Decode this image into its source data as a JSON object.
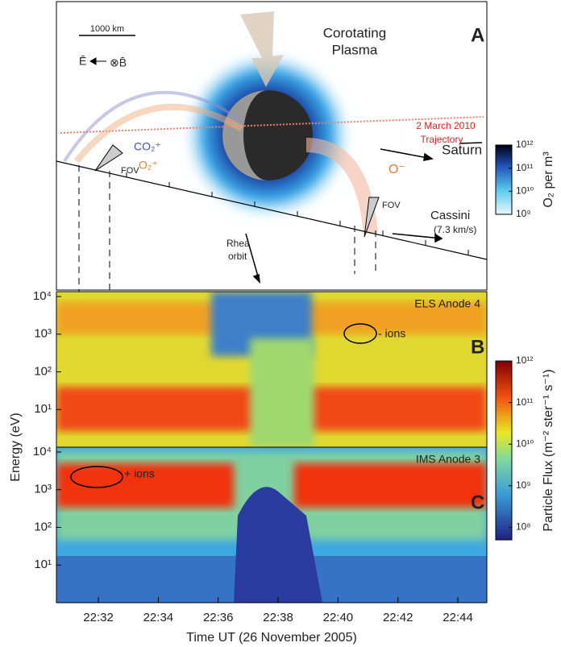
{
  "panel_a": {
    "label": "A",
    "scale_bar": "1000 km",
    "field_e": "Ē",
    "field_b": "⊗B̄",
    "plasma": [
      "Corotating",
      "Plasma"
    ],
    "co2_ion": "CO₂⁺",
    "o2_ion": "O₂⁺",
    "o_ion": "O⁻",
    "trajectory": [
      "2 March 2010",
      "Trajectory"
    ],
    "saturn": "Saturn",
    "fov": [
      "FOV",
      "FOV"
    ],
    "cassini": [
      "Cassini",
      "(7.3 km/s)"
    ],
    "rhea_orbit": [
      "Rhea",
      "orbit"
    ],
    "colorbar": {
      "label": "O₂ per m³",
      "lim": [
        1000000000,
        1000000000000
      ],
      "ticks": [
        {
          "value": 1000000000000,
          "label": "10¹²"
        },
        {
          "value": 100000000000,
          "label": "10¹¹"
        },
        {
          "value": 10000000000,
          "label": "10¹⁰"
        },
        {
          "value": 1000000000,
          "label": "10⁹"
        }
      ]
    }
  },
  "spectrogram": {
    "y_label": "Energy (eV)",
    "x_label": "Time UT (26 November 2005)",
    "xlim": [
      "22:30:36",
      "22:44:58"
    ],
    "xticks": [
      "22:32",
      "22:34",
      "22:36",
      "22:38",
      "22:40",
      "22:42",
      "22:44"
    ],
    "ylim": [
      1,
      10000
    ],
    "yticks": [
      {
        "value": 10000,
        "label": "10⁴"
      },
      {
        "value": 1000,
        "label": "10³"
      },
      {
        "value": 100,
        "label": "10²"
      },
      {
        "value": 10,
        "label": "10¹"
      }
    ],
    "panels": [
      {
        "label": "B",
        "title": "ELS Anode 4",
        "annotation": "- ions"
      },
      {
        "label": "C",
        "title": "IMS Anode 3",
        "annotation": "+ ions"
      }
    ],
    "colorbar": {
      "label": "Particle Flux  (m⁻² ster⁻¹ s⁻¹)",
      "lim": [
        50000000,
        1000000000000
      ],
      "ticks": [
        {
          "value": 1000000000000,
          "label": "10¹²"
        },
        {
          "value": 100000000000,
          "label": "10¹¹"
        },
        {
          "value": 10000000000,
          "label": "10¹⁰"
        },
        {
          "value": 1000000000,
          "label": "10⁹"
        },
        {
          "value": 100000000,
          "label": "10⁸"
        }
      ]
    }
  }
}
